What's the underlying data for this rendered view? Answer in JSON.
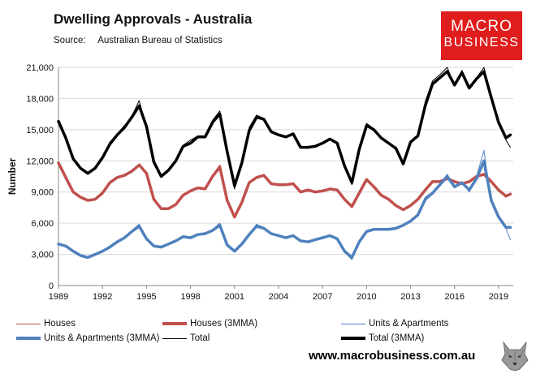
{
  "title": "Dwelling Approvals - Australia",
  "source_label": "Source:",
  "source_value": "Australian Bureau of Statistics",
  "logo": {
    "line1": "MACRO",
    "line2": "BUSINESS",
    "color": "#e01d1d"
  },
  "website": "www.macrobusiness.com.au",
  "chart_data": {
    "type": "line",
    "ylabel": "Number",
    "xlabel": "",
    "ylim": [
      0,
      21000
    ],
    "xlim": [
      1989,
      2020
    ],
    "yticks": [
      "0",
      "3,000",
      "6,000",
      "9,000",
      "12,000",
      "15,000",
      "18,000",
      "21,000"
    ],
    "xticks": [
      "1989",
      "1992",
      "1995",
      "1998",
      "2001",
      "2004",
      "2007",
      "2010",
      "2013",
      "2016",
      "2019"
    ],
    "grid": "horizontal",
    "legend_position": "bottom",
    "x": [
      1989.0,
      1989.5,
      1990.0,
      1990.5,
      1991.0,
      1991.5,
      1992.0,
      1992.5,
      1993.0,
      1993.5,
      1994.0,
      1994.5,
      1995.0,
      1995.5,
      1996.0,
      1996.5,
      1997.0,
      1997.5,
      1998.0,
      1998.5,
      1999.0,
      1999.5,
      2000.0,
      2000.5,
      2001.0,
      2001.5,
      2002.0,
      2002.5,
      2003.0,
      2003.5,
      2004.0,
      2004.5,
      2005.0,
      2005.5,
      2006.0,
      2006.5,
      2007.0,
      2007.5,
      2008.0,
      2008.5,
      2009.0,
      2009.5,
      2010.0,
      2010.5,
      2011.0,
      2011.5,
      2012.0,
      2012.5,
      2013.0,
      2013.5,
      2014.0,
      2014.5,
      2015.0,
      2015.5,
      2016.0,
      2016.5,
      2017.0,
      2017.5,
      2018.0,
      2018.5,
      2019.0,
      2019.5,
      2019.8
    ],
    "series": [
      {
        "name": "Houses",
        "color": "#c0504d",
        "width": 1,
        "values": [
          11900,
          10500,
          9000,
          8500,
          8200,
          8300,
          9000,
          10000,
          10400,
          10600,
          11000,
          11700,
          10800,
          8200,
          7400,
          7400,
          7800,
          8800,
          9100,
          9400,
          9300,
          10600,
          11600,
          8000,
          6500,
          8000,
          10000,
          10400,
          10600,
          9800,
          9700,
          9700,
          9800,
          9000,
          9200,
          9000,
          9100,
          9300,
          9200,
          8200,
          7600,
          9000,
          10300,
          9500,
          8700,
          8300,
          7700,
          7200,
          7700,
          8300,
          9300,
          10000,
          10000,
          10300,
          10000,
          9800,
          10000,
          10500,
          10800,
          10000,
          9200,
          8500,
          8900
        ]
      },
      {
        "name": "Houses (3MMA)",
        "color": "#c0504d",
        "width": 3.5,
        "values": [
          11800,
          10400,
          9000,
          8500,
          8200,
          8300,
          8900,
          9900,
          10400,
          10600,
          11000,
          11600,
          10800,
          8300,
          7400,
          7400,
          7800,
          8700,
          9100,
          9400,
          9300,
          10500,
          11400,
          8200,
          6600,
          8000,
          9900,
          10400,
          10600,
          9800,
          9700,
          9700,
          9800,
          9000,
          9200,
          9000,
          9100,
          9300,
          9200,
          8300,
          7600,
          8900,
          10200,
          9500,
          8700,
          8300,
          7700,
          7300,
          7700,
          8300,
          9200,
          10000,
          10000,
          10300,
          10000,
          9800,
          10000,
          10500,
          10700,
          10000,
          9200,
          8600,
          8800
        ]
      },
      {
        "name": "Units & Apartments",
        "color": "#4f81bd",
        "width": 1,
        "values": [
          4000,
          3800,
          3300,
          2900,
          2700,
          3000,
          3300,
          3800,
          4200,
          4700,
          5300,
          5900,
          4500,
          3800,
          3700,
          4000,
          4300,
          4800,
          4600,
          4900,
          5000,
          5400,
          6000,
          3800,
          3200,
          4000,
          5000,
          5900,
          5600,
          5000,
          4800,
          4600,
          4800,
          4300,
          4200,
          4400,
          4600,
          4800,
          4500,
          3200,
          2500,
          4200,
          5300,
          5500,
          5500,
          5500,
          5600,
          5800,
          6200,
          6900,
          8500,
          9000,
          9800,
          10700,
          9500,
          10000,
          9000,
          10500,
          13000,
          8000,
          6500,
          5500,
          4400
        ]
      },
      {
        "name": "Units & Apartments (3MMA)",
        "color": "#4f81bd",
        "width": 3.5,
        "values": [
          4000,
          3800,
          3300,
          2900,
          2700,
          3000,
          3300,
          3700,
          4200,
          4600,
          5200,
          5700,
          4500,
          3800,
          3700,
          4000,
          4300,
          4700,
          4600,
          4900,
          5000,
          5300,
          5800,
          3900,
          3300,
          4000,
          4900,
          5700,
          5500,
          5000,
          4800,
          4600,
          4800,
          4300,
          4200,
          4400,
          4600,
          4800,
          4500,
          3300,
          2700,
          4200,
          5200,
          5400,
          5400,
          5400,
          5500,
          5800,
          6200,
          6800,
          8300,
          8900,
          9700,
          10500,
          9500,
          9900,
          9200,
          10300,
          12000,
          8200,
          6600,
          5600,
          5600
        ]
      },
      {
        "name": "Total",
        "color": "#000000",
        "width": 1,
        "values": [
          15900,
          14300,
          12200,
          11300,
          10800,
          11400,
          12400,
          13800,
          14600,
          15400,
          16300,
          17800,
          15200,
          11700,
          10500,
          11100,
          12000,
          13500,
          14000,
          14400,
          14300,
          15900,
          16800,
          12600,
          9300,
          11800,
          15200,
          16400,
          16100,
          14800,
          14500,
          14300,
          14600,
          13300,
          13300,
          13400,
          13700,
          14100,
          13700,
          11400,
          9700,
          13200,
          15600,
          15100,
          14300,
          13800,
          13200,
          11800,
          13900,
          14400,
          17700,
          19700,
          20300,
          21000,
          19200,
          20700,
          18900,
          20000,
          21000,
          18000,
          15700,
          14000,
          13300
        ]
      },
      {
        "name": "Total (3MMA)",
        "color": "#000000",
        "width": 3.5,
        "values": [
          15800,
          14200,
          12200,
          11300,
          10800,
          11300,
          12300,
          13600,
          14500,
          15200,
          16200,
          17300,
          15300,
          11900,
          10500,
          11100,
          12000,
          13400,
          13700,
          14300,
          14300,
          15700,
          16500,
          12900,
          9600,
          11800,
          14900,
          16200,
          16000,
          14800,
          14500,
          14300,
          14600,
          13300,
          13300,
          13400,
          13700,
          14100,
          13700,
          11500,
          9900,
          13100,
          15400,
          15000,
          14200,
          13700,
          13200,
          11700,
          13800,
          14400,
          17300,
          19400,
          20000,
          20600,
          19300,
          20500,
          19000,
          19900,
          20600,
          18100,
          15700,
          14200,
          14500
        ]
      }
    ]
  }
}
